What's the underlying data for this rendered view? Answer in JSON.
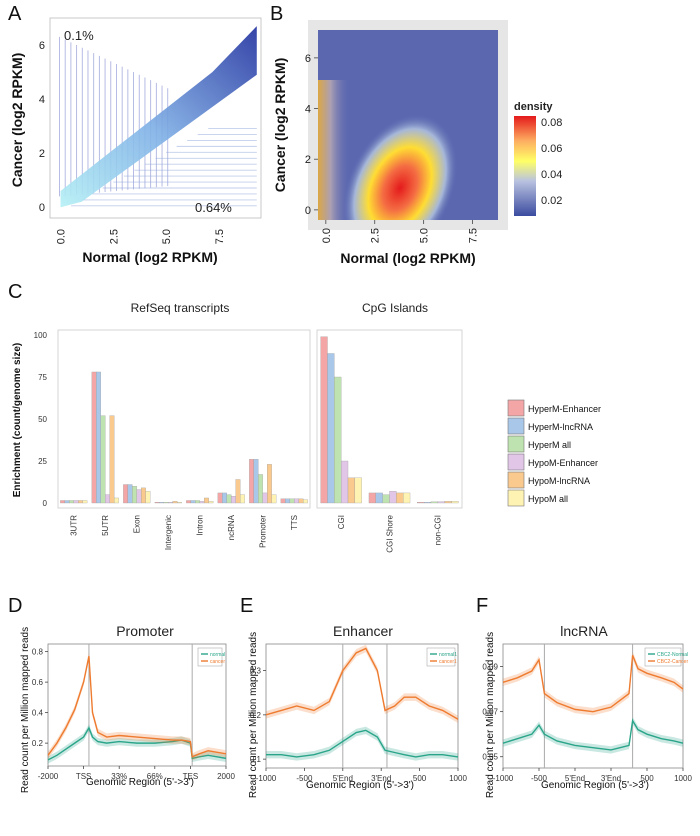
{
  "panels": {
    "A": {
      "letter": "A",
      "type": "scatter",
      "xlabel": "Normal (log2 RPKM)",
      "ylabel": "Cancer (log2 RPKM)",
      "xticks": [
        "0.0",
        "2.5",
        "5.0",
        "7.5"
      ],
      "yticks": [
        "0",
        "2",
        "4",
        "6"
      ],
      "annotation_upper": "0.1%",
      "annotation_lower": "0.64%",
      "xlim": [
        -0.5,
        9.5
      ],
      "ylim": [
        -0.4,
        7.0
      ]
    },
    "B": {
      "letter": "B",
      "type": "heatmap",
      "xlabel": "Normal (log2 RPKM)",
      "ylabel": "Cancer (log2 RPKM)",
      "xticks": [
        "0.0",
        "2.5",
        "5.0",
        "7.5"
      ],
      "yticks": [
        "0",
        "2",
        "4",
        "6"
      ],
      "legend_title": "density",
      "legend_ticks": [
        "0.08",
        "0.06",
        "0.04",
        "0.02"
      ],
      "colors": {
        "low": "#4a56a6",
        "mid": "#ffff33",
        "high": "#e41a1c"
      }
    },
    "C": {
      "letter": "C",
      "ylabel": "Enrichment (count/genome size)",
      "title_left": "RefSeq transcripts",
      "title_right": "CpG Islands",
      "yticks": [
        "0",
        "25",
        "50",
        "75",
        "100"
      ],
      "categories_left": [
        "3UTR",
        "5UTR",
        "Exon",
        "Intergenic",
        "Intron",
        "ncRNA",
        "Promoter",
        "TTS"
      ],
      "categories_right": [
        "CGI",
        "CGI Shore",
        "non-CGI"
      ]
    },
    "D": {
      "letter": "D",
      "title": "Promoter",
      "ylabel": "Read count per Million mapped reads",
      "xlabel": "Genomic Region (5'->3')",
      "xticks": [
        "-2000",
        "TSS",
        "33%",
        "66%",
        "TES",
        "2000"
      ],
      "yticks": [
        "0.2",
        "0.4",
        "0.6",
        "0.8"
      ],
      "legend": [
        "normal",
        "cancer"
      ]
    },
    "E": {
      "letter": "E",
      "title": "Enhancer",
      "ylabel": "Read count per Million mapped reads",
      "xlabel": "Genomic Region (5'->3')",
      "xticks": [
        "-1000",
        "-500",
        "5'End",
        "3'End",
        "500",
        "1000"
      ],
      "yticks": [
        "0.1",
        "0.2",
        "0.3"
      ],
      "legend": [
        "normal1",
        "cancer1"
      ]
    },
    "F": {
      "letter": "F",
      "title": "lncRNA",
      "ylabel": "Read count per Million mapped reads",
      "xlabel": "Genomic Region (5'->3')",
      "xticks": [
        "-1000",
        "-500",
        "5'End",
        "3'End",
        "500",
        "1000"
      ],
      "yticks": [
        "0.05",
        "0.07",
        "0.09"
      ],
      "legend": [
        "CBC2-Normal",
        "CBC2-Cancer"
      ]
    }
  },
  "chart_data": [
    {
      "type": "bar",
      "title": "RefSeq transcripts",
      "ylabel": "Enrichment (count/genome size)",
      "ylim": [
        0,
        100
      ],
      "categories": [
        "3UTR",
        "5UTR",
        "Exon",
        "Intergenic",
        "Intron",
        "ncRNA",
        "Promoter",
        "TTS"
      ],
      "series": [
        {
          "name": "HyperM-Enhancer",
          "color": "#f4a6a6",
          "values": [
            1.5,
            78,
            11,
            0.5,
            1.5,
            6,
            26,
            2.5
          ]
        },
        {
          "name": "HyperM-lncRNA",
          "color": "#a9c7e8",
          "values": [
            1.5,
            78,
            11,
            0.5,
            1.5,
            6,
            26,
            2.5
          ]
        },
        {
          "name": "HyperM all",
          "color": "#bfe3b0",
          "values": [
            1.5,
            52,
            10,
            0.5,
            1.5,
            5,
            17,
            2.5
          ]
        },
        {
          "name": "HypoM-Enhancer",
          "color": "#e2c6e8",
          "values": [
            1.5,
            5,
            8,
            0.5,
            1,
            4,
            6,
            2.5
          ]
        },
        {
          "name": "HypoM-lncRNA",
          "color": "#f9c98e",
          "values": [
            1.5,
            52,
            9,
            1,
            3,
            14,
            23,
            2.5
          ]
        },
        {
          "name": "HypoM all",
          "color": "#fff3b3",
          "values": [
            1.5,
            3,
            7,
            0.5,
            1,
            5,
            5,
            2
          ]
        }
      ],
      "legend": [
        "HyperM-Enhancer",
        "HyperM-lncRNA",
        "HyperM all",
        "HypoM-Enhancer",
        "HypoM-lncRNA",
        "HypoM all"
      ]
    },
    {
      "type": "bar",
      "title": "CpG Islands",
      "ylim": [
        0,
        100
      ],
      "categories": [
        "CGI",
        "CGI Shore",
        "non-CGI"
      ],
      "series": [
        {
          "name": "HyperM-Enhancer",
          "values": [
            99,
            6,
            0.5
          ]
        },
        {
          "name": "HyperM-lncRNA",
          "values": [
            89,
            6,
            0.5
          ]
        },
        {
          "name": "HyperM all",
          "values": [
            75,
            5,
            0.7
          ]
        },
        {
          "name": "HypoM-Enhancer",
          "values": [
            25,
            7,
            0.8
          ]
        },
        {
          "name": "HypoM-lncRNA",
          "values": [
            15,
            6,
            1
          ]
        },
        {
          "name": "HypoM all",
          "values": [
            15,
            6,
            1
          ]
        }
      ]
    },
    {
      "type": "line",
      "title": "Promoter",
      "xlabel": "Genomic Region (5'->3')",
      "ylabel": "Read count per Million mapped reads",
      "x": [
        0,
        0.05,
        0.1,
        0.15,
        0.2,
        0.23,
        0.25,
        0.28,
        0.33,
        0.4,
        0.5,
        0.6,
        0.7,
        0.75,
        0.8,
        0.81,
        0.85,
        0.9,
        0.95,
        1.0
      ],
      "xlim": [
        0,
        1
      ],
      "ylim": [
        0.05,
        0.85
      ],
      "series": [
        {
          "name": "normal",
          "color": "#2aa58a",
          "values": [
            0.09,
            0.12,
            0.16,
            0.2,
            0.24,
            0.3,
            0.24,
            0.21,
            0.2,
            0.21,
            0.2,
            0.2,
            0.21,
            0.22,
            0.2,
            0.1,
            0.11,
            0.12,
            0.11,
            0.1
          ]
        },
        {
          "name": "cancer",
          "color": "#ee7b2f",
          "values": [
            0.12,
            0.2,
            0.3,
            0.42,
            0.6,
            0.77,
            0.4,
            0.27,
            0.24,
            0.25,
            0.24,
            0.23,
            0.22,
            0.22,
            0.21,
            0.11,
            0.13,
            0.15,
            0.14,
            0.13
          ]
        }
      ]
    },
    {
      "type": "line",
      "title": "Enhancer",
      "xlabel": "Genomic Region (5'->3')",
      "ylabel": "Read count per Million mapped reads",
      "x": [
        0,
        0.08,
        0.16,
        0.25,
        0.33,
        0.4,
        0.47,
        0.52,
        0.58,
        0.62,
        0.67,
        0.72,
        0.78,
        0.85,
        0.92,
        1.0
      ],
      "xlim": [
        0,
        1
      ],
      "ylim": [
        0.08,
        0.36
      ],
      "series": [
        {
          "name": "normal1",
          "color": "#2aa58a",
          "values": [
            0.11,
            0.11,
            0.105,
            0.11,
            0.12,
            0.14,
            0.16,
            0.165,
            0.15,
            0.12,
            0.115,
            0.11,
            0.105,
            0.11,
            0.11,
            0.105
          ]
        },
        {
          "name": "cancer1",
          "color": "#ee7b2f",
          "values": [
            0.2,
            0.21,
            0.22,
            0.21,
            0.23,
            0.3,
            0.34,
            0.35,
            0.3,
            0.21,
            0.22,
            0.24,
            0.24,
            0.22,
            0.21,
            0.19
          ]
        }
      ]
    },
    {
      "type": "line",
      "title": "lncRNA",
      "xlabel": "Genomic Region (5'->3')",
      "ylabel": "Read count per Million mapped reads",
      "x": [
        0,
        0.08,
        0.16,
        0.2,
        0.23,
        0.3,
        0.4,
        0.5,
        0.6,
        0.7,
        0.72,
        0.75,
        0.8,
        0.88,
        0.95,
        1.0
      ],
      "xlim": [
        0,
        1
      ],
      "ylim": [
        0.045,
        0.1
      ],
      "series": [
        {
          "name": "CBC2-Normal",
          "color": "#2aa58a",
          "values": [
            0.056,
            0.058,
            0.06,
            0.064,
            0.06,
            0.057,
            0.055,
            0.054,
            0.053,
            0.055,
            0.066,
            0.062,
            0.06,
            0.058,
            0.057,
            0.056
          ]
        },
        {
          "name": "CBC2-Cancer",
          "color": "#ee7b2f",
          "values": [
            0.083,
            0.085,
            0.088,
            0.093,
            0.078,
            0.074,
            0.071,
            0.07,
            0.072,
            0.078,
            0.095,
            0.089,
            0.087,
            0.085,
            0.083,
            0.08
          ]
        }
      ]
    }
  ]
}
